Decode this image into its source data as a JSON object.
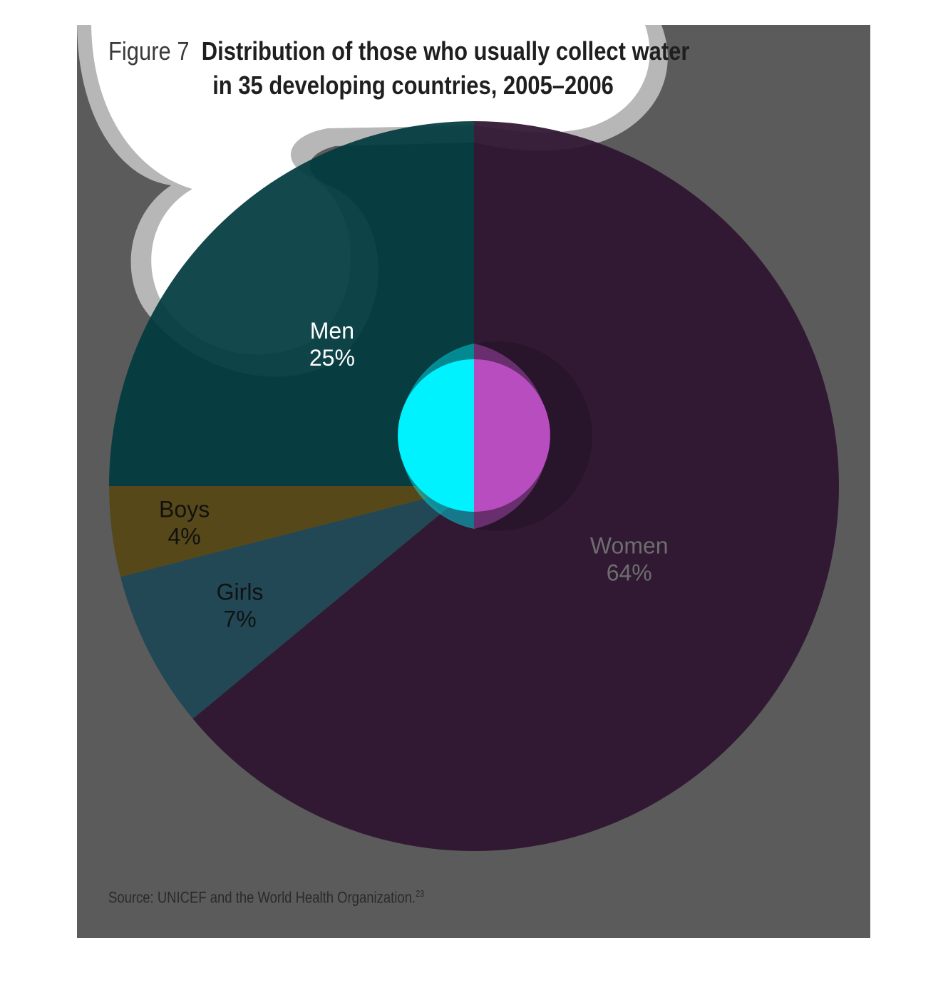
{
  "figure_label": "Figure 7",
  "title_line1": "Distribution of those who usually collect water",
  "title_line2": "in 35 developing countries, 2005–2006",
  "source": "Source: UNICEF and the World Health Organization.",
  "source_ref": "23",
  "colors": {
    "panel": "#5b5b5b",
    "women": "#2e1430",
    "men": "#013a40",
    "boys": "#564713",
    "girls": "#1e4755",
    "accent_cyan": "#00f2ff",
    "accent_magenta": "#b84dc0"
  },
  "chart_data": {
    "type": "pie",
    "title": "Distribution of those who usually collect water in 35 developing countries, 2005–2006",
    "slices": [
      {
        "name": "Women",
        "value": 64,
        "label": "64%"
      },
      {
        "name": "Girls",
        "value": 7,
        "label": "7%"
      },
      {
        "name": "Boys",
        "value": 4,
        "label": "4%"
      },
      {
        "name": "Men",
        "value": 25,
        "label": "25%"
      }
    ],
    "start_angle": "12 o'clock",
    "direction": "clockwise",
    "legend": "none (labels on slices)"
  }
}
